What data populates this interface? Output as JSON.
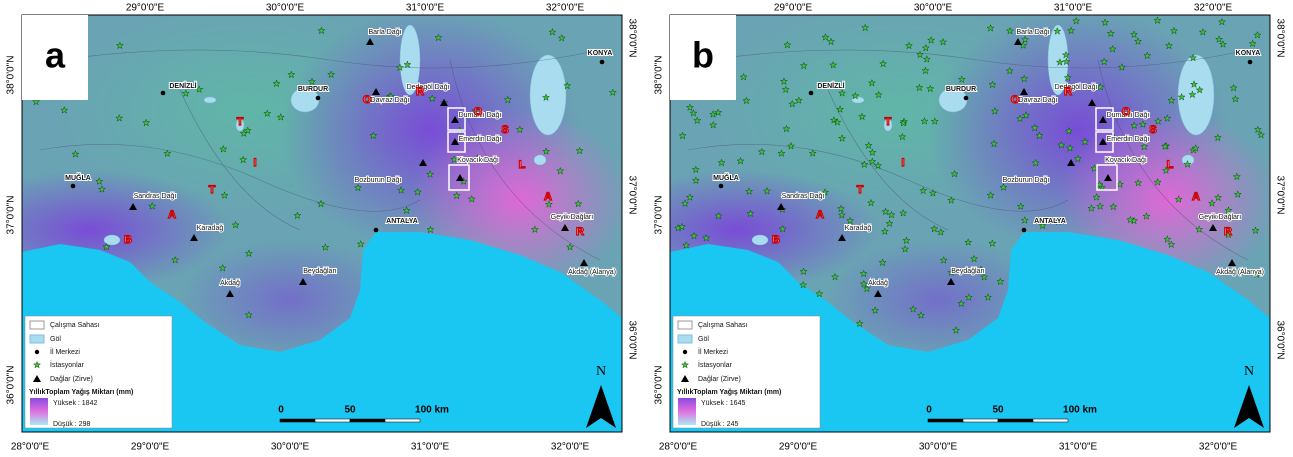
{
  "panels": [
    {
      "label": "a",
      "top_lon_labels": [
        "29°0'0\"E",
        "30°0'0\"E",
        "31°0'0\"E",
        "32°0'0\"E"
      ],
      "bottom_lon_labels": [
        "28°0'0\"E",
        "29°0'0\"E",
        "30°0'0\"E",
        "31°0'0\"E",
        "32°0'0\"E"
      ],
      "left_lat_labels": [
        "38°0'0\"N",
        "37°0'0\"N",
        "36°0'0\"N"
      ],
      "right_lat_labels": [
        "38°0'0\"N",
        "37°0'0\"N",
        "36°0'0\"N"
      ],
      "places": [
        "Barla Dağı",
        "KONYA",
        "DENİZLİ",
        "BURDUR",
        "Davraz Dağı",
        "Dedegöl Dağı",
        "Dumanlı Dağı",
        "Emerdin Dağı",
        "Kovacık Dağı",
        "Bozburun Dağı",
        "MUĞLA",
        "Sandras Dağı",
        "ANTALYA",
        "Geyik Dağları",
        "Karadağ",
        "Akdağ",
        "Beydağları",
        "Akdağ (Alanya)"
      ],
      "range_letters": [
        "B",
        "A",
        "T",
        "I",
        "T",
        "O",
        "R",
        "O",
        "S",
        "L",
        "A",
        "R"
      ],
      "legend": {
        "items": [
          "Çalışma Sahası",
          "Göl",
          "İl Merkezi",
          "İstasyonlar",
          "Dağlar (Zirve)"
        ],
        "title": "YıllıkToplam Yağış Miktarı (mm)",
        "high": "Yüksek : 1842",
        "low": "Düşük : 298"
      },
      "scale": [
        "0",
        "50",
        "100 km"
      ],
      "north": "N"
    },
    {
      "label": "b",
      "top_lon_labels": [
        "29°0'0\"E",
        "30°0'0\"E",
        "31°0'0\"E",
        "32°0'0\"E"
      ],
      "bottom_lon_labels": [
        "28°0'0\"E",
        "29°0'0\"E",
        "30°0'0\"E",
        "31°0'0\"E",
        "32°0'0\"E"
      ],
      "left_lat_labels": [
        "38°0'0\"N",
        "37°0'0\"N",
        "36°0'0\"N"
      ],
      "right_lat_labels": [
        "38°0'0\"N",
        "37°0'0\"N",
        "36°0'0\"N"
      ],
      "places": [
        "Barla Dağı",
        "KONYA",
        "DENİZLİ",
        "BURDUR",
        "Davraz Dağı",
        "Dedegöl Dağı",
        "Dumanlı Dağı",
        "Emerdin Dağı",
        "Kovacık Dağı",
        "Bozburun Dağı",
        "MUĞLA",
        "Sandras Dağı",
        "ANTALYA",
        "Geyik Dağları",
        "Karadağ",
        "Akdağ",
        "Beydağları",
        "Akdağ (Alanya)"
      ],
      "range_letters": [
        "B",
        "A",
        "T",
        "I",
        "T",
        "O",
        "R",
        "O",
        "S",
        "L",
        "A",
        "R"
      ],
      "legend": {
        "items": [
          "Çalışma Sahası",
          "Göl",
          "İl Merkezi",
          "İstasyonlar",
          "Dağlar (Zirve)"
        ],
        "title": "YıllıkToplam Yağış Miktarı (mm)",
        "high": "Yüksek : 1645",
        "low": "Düşük : 245"
      },
      "scale": [
        "0",
        "50",
        "100 km"
      ],
      "north": "N"
    }
  ]
}
